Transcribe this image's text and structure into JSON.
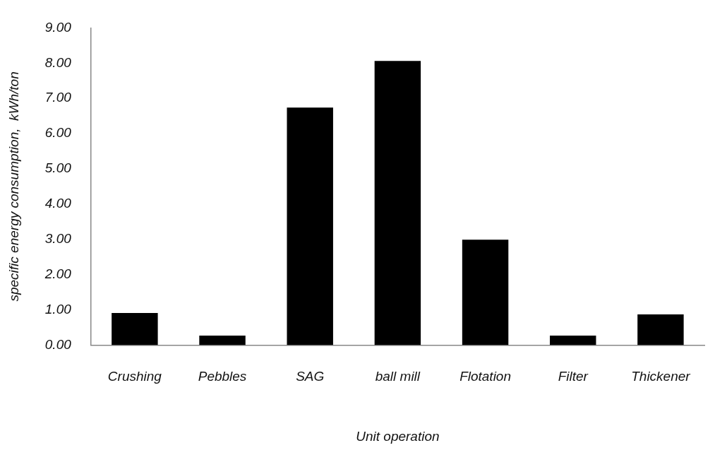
{
  "chart_data": {
    "type": "bar",
    "xlabel": "Unit operation",
    "ylabel": "specific energy consumption,  kWh/ton",
    "categories": [
      "Crushing",
      "Pebbles",
      "SAG",
      "ball mill",
      "Flotation",
      "Filter",
      "Thickener"
    ],
    "values": [
      0.91,
      0.27,
      6.74,
      8.06,
      2.99,
      0.27,
      0.87
    ],
    "color": "#000000",
    "ylim": [
      0,
      9
    ],
    "yticks": [
      {
        "value": 0,
        "label": "0.00"
      },
      {
        "value": 1,
        "label": "1.00"
      },
      {
        "value": 2,
        "label": "2.00"
      },
      {
        "value": 3,
        "label": "3.00"
      },
      {
        "value": 4,
        "label": "4.00"
      },
      {
        "value": 5,
        "label": "5.00"
      },
      {
        "value": 6,
        "label": "6.00"
      },
      {
        "value": 7,
        "label": "7.00"
      },
      {
        "value": 8,
        "label": "8.00"
      },
      {
        "value": 9,
        "label": "9.00"
      }
    ],
    "grid": false
  }
}
